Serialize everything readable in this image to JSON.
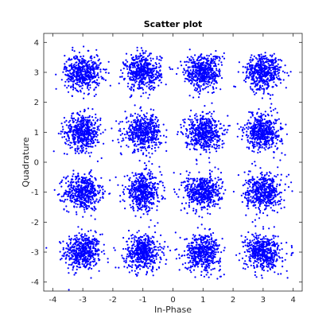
{
  "chart_data": {
    "type": "scatter",
    "title": "Scatter plot",
    "xlabel": "In-Phase",
    "ylabel": "Quadrature",
    "xlim": [
      -4.3,
      4.3
    ],
    "ylim": [
      -4.3,
      4.3
    ],
    "xticks": [
      -4,
      -3,
      -2,
      -1,
      0,
      1,
      2,
      3,
      4
    ],
    "yticks": [
      -4,
      -3,
      -2,
      -1,
      0,
      1,
      2,
      3,
      4
    ],
    "grid": false,
    "marker_color": "#0000ff",
    "constellation_centers_x": [
      -3,
      -1,
      1,
      3
    ],
    "constellation_centers_y": [
      -3,
      -1,
      1,
      3
    ],
    "approx_points_per_cluster": 500,
    "approx_noise_std": 0.3
  }
}
